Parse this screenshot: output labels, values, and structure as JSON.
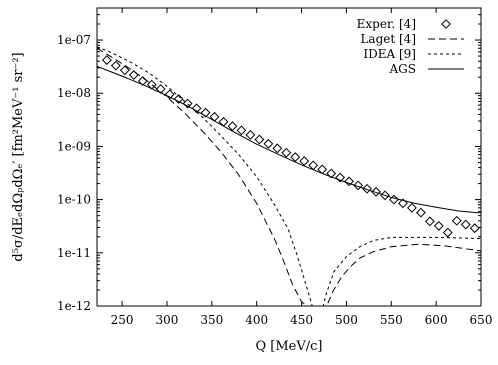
{
  "chart_data": {
    "type": "scatter",
    "xlabel": "Q  [MeV/c]",
    "ylabel": "d⁵σ/dEₑdΩₚdΩₑ′  [fm²MeV⁻¹ sr⁻²]",
    "xlim": [
      222,
      650
    ],
    "ylim": [
      1e-12,
      4e-07
    ],
    "y_scale": "log",
    "x_ticks": [
      250,
      300,
      350,
      400,
      450,
      500,
      550,
      600,
      650
    ],
    "x_tick_labels": [
      "250",
      "300",
      "350",
      "400",
      "450",
      "500",
      "550",
      "600",
      "650"
    ],
    "y_ticks": [
      1e-12,
      1e-11,
      1e-10,
      1e-09,
      1e-08,
      1e-07
    ],
    "y_tick_labels": [
      "1e-12",
      "1e-11",
      "1e-10",
      "1e-09",
      "1e-08",
      "1e-07"
    ],
    "legend_position": "top-right",
    "grid": false,
    "series": [
      {
        "name": "Exper. [4]",
        "style": "diamond",
        "x": [
          233,
          243,
          253,
          263,
          273,
          283,
          293,
          303,
          313,
          323,
          333,
          343,
          353,
          363,
          373,
          383,
          393,
          403,
          413,
          423,
          433,
          443,
          453,
          463,
          473,
          483,
          493,
          503,
          513,
          523,
          533,
          543,
          553,
          563,
          573,
          583,
          593,
          603,
          613,
          623,
          633,
          643
        ],
        "y": [
          4.2e-08,
          3.3e-08,
          2.7e-08,
          2.2e-08,
          1.7e-08,
          1.45e-08,
          1.2e-08,
          9.5e-09,
          7.8e-09,
          6.4e-09,
          5.2e-09,
          4.3e-09,
          3.6e-09,
          2.9e-09,
          2.4e-09,
          2e-09,
          1.65e-09,
          1.35e-09,
          1.12e-09,
          9.2e-10,
          7.6e-10,
          6.3e-10,
          5.3e-10,
          4.4e-10,
          3.7e-10,
          3.1e-10,
          2.6e-10,
          2.2e-10,
          1.85e-10,
          1.6e-10,
          1.4e-10,
          1.2e-10,
          1e-10,
          8.5e-11,
          7e-11,
          5.7e-11,
          3.9e-11,
          3.2e-11,
          2.4e-11,
          4e-11,
          3.4e-11,
          2.9e-11
        ]
      },
      {
        "name": "Laget [4]",
        "style": "long-dash",
        "x": [
          222,
          240,
          260,
          280,
          300,
          320,
          340,
          360,
          380,
          400,
          420,
          430,
          440,
          450,
          456,
          462,
          466,
          470,
          478,
          485,
          495,
          505,
          515,
          530,
          550,
          580,
          610,
          640,
          650
        ],
        "y": [
          7e-08,
          4.6e-08,
          2.8e-08,
          1.6e-08,
          8.5e-09,
          4.2e-09,
          1.9e-09,
          8e-10,
          2.9e-10,
          8.5e-11,
          1.8e-11,
          7e-12,
          2.5e-12,
          1.2e-12,
          1e-12,
          1e-12,
          1e-12,
          1e-12,
          1e-12,
          1.9e-12,
          3.6e-12,
          5.6e-12,
          8e-12,
          1.05e-11,
          1.3e-11,
          1.45e-11,
          1.35e-11,
          1.15e-11,
          1.08e-11
        ]
      },
      {
        "name": "IDEA [9]",
        "style": "short-dash",
        "x": [
          222,
          240,
          260,
          280,
          300,
          320,
          340,
          360,
          380,
          400,
          420,
          435,
          445,
          455,
          462,
          466,
          470,
          474,
          478,
          486,
          500,
          515,
          530,
          550,
          570,
          600,
          630,
          650
        ],
        "y": [
          7.5e-08,
          5.6e-08,
          3.8e-08,
          2.4e-08,
          1.35e-08,
          7e-09,
          3.5e-09,
          1.6e-09,
          7e-10,
          2.7e-10,
          8e-11,
          2.8e-11,
          9e-12,
          2.5e-12,
          1e-12,
          1e-12,
          1e-12,
          1e-12,
          1.8e-12,
          4.4e-12,
          8.5e-12,
          1.3e-11,
          1.7e-11,
          1.95e-11,
          1.95e-11,
          1.95e-11,
          1.9e-11,
          1.85e-11
        ]
      },
      {
        "name": "AGS",
        "style": "solid",
        "x": [
          222,
          250,
          275,
          300,
          325,
          350,
          375,
          400,
          425,
          450,
          475,
          500,
          525,
          550,
          575,
          600,
          625,
          650
        ],
        "y": [
          3.2e-08,
          2.1e-08,
          1.4e-08,
          9e-09,
          5.5e-09,
          3.2e-09,
          1.85e-09,
          1.1e-09,
          7e-10,
          4.5e-10,
          3e-10,
          2.1e-10,
          1.5e-10,
          1.1e-10,
          8.6e-11,
          7.2e-11,
          6.1e-11,
          5.6e-11
        ]
      }
    ]
  }
}
